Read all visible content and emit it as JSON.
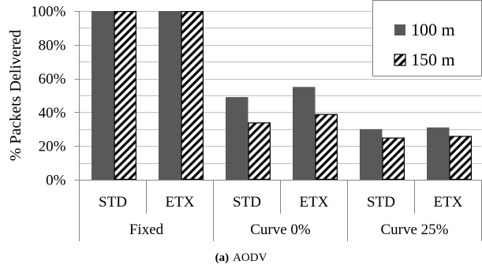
{
  "caption": {
    "label": "(a)",
    "text": "AODV"
  },
  "colors": {
    "text": "#000000",
    "grid": "#bfbfbf",
    "axis": "#868686",
    "legend_border": "#7f7f7f",
    "background": "#ffffff"
  },
  "chart_data": {
    "type": "bar",
    "ylabel": "% Packets Delivered",
    "ylim": [
      0,
      100
    ],
    "yticks": [
      0,
      20,
      40,
      60,
      80,
      100
    ],
    "ytick_labels": [
      "0%",
      "20%",
      "40%",
      "60%",
      "80%",
      "100%"
    ],
    "grid": true,
    "grid_step": 10,
    "legend": "top-right",
    "groups": [
      {
        "label": "Fixed",
        "categories": [
          "STD",
          "ETX"
        ]
      },
      {
        "label": "Curve 0%",
        "categories": [
          "STD",
          "ETX"
        ]
      },
      {
        "label": "Curve 25%",
        "categories": [
          "STD",
          "ETX"
        ]
      }
    ],
    "series": [
      {
        "name": "100 m",
        "color": "#595959",
        "hatched": false,
        "values": [
          100,
          100,
          49,
          55,
          30,
          31
        ]
      },
      {
        "name": "150 m",
        "color": "#000000",
        "hatched": true,
        "values": [
          100,
          100,
          34,
          39,
          25,
          26
        ]
      }
    ]
  }
}
